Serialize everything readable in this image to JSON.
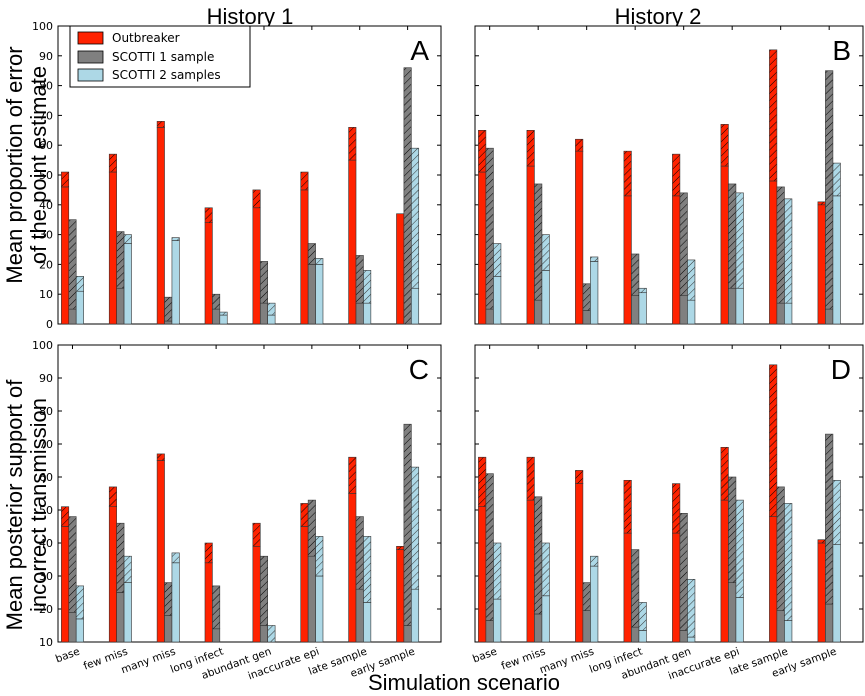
{
  "figure": {
    "column_titles": [
      "History 1",
      "History 2"
    ],
    "ylabel_top": [
      "Mean proportion of error",
      "of the point estimate"
    ],
    "ylabel_bottom": [
      "Mean posterior support of",
      "incorrect transmission"
    ],
    "xlabel": "Simulation scenario"
  },
  "legend": {
    "position": "top-left",
    "entries": [
      {
        "name": "Outbreaker",
        "color": "#ff2200"
      },
      {
        "name": "SCOTTI 1 sample",
        "color": "#808080"
      },
      {
        "name": "SCOTTI 2 samples",
        "color": "#add8e6"
      }
    ]
  },
  "chart_data": [
    {
      "panel": "A",
      "type": "bar",
      "title": "History 1",
      "ylabel": "Mean proportion of error of the point estimate",
      "xlabel": "",
      "ylim": [
        0,
        100
      ],
      "yticks": [
        0,
        10,
        20,
        30,
        40,
        50,
        60,
        70,
        80,
        90,
        100
      ],
      "categories": [
        "base",
        "few miss",
        "many miss",
        "long infect",
        "abundant gen",
        "inaccurate epi",
        "late sample",
        "early sample"
      ],
      "series": [
        {
          "name": "Outbreaker",
          "values": [
            51,
            57,
            68,
            39,
            45,
            51,
            66,
            37
          ],
          "lower": [
            46,
            51,
            66,
            34,
            39,
            45,
            55,
            37
          ]
        },
        {
          "name": "SCOTTI 1 sample",
          "values": [
            35,
            31,
            9,
            10,
            21,
            27,
            23,
            86
          ],
          "lower": [
            5,
            12,
            1,
            5,
            7,
            20,
            7,
            0
          ]
        },
        {
          "name": "SCOTTI 2 samples",
          "values": [
            16,
            30,
            29,
            4,
            7,
            22,
            18,
            59
          ],
          "lower": [
            11,
            27,
            28,
            3,
            3,
            20,
            7,
            12
          ]
        }
      ]
    },
    {
      "panel": "B",
      "type": "bar",
      "title": "History 2",
      "ylabel": "",
      "xlabel": "",
      "ylim": [
        0,
        100
      ],
      "categories": [
        "base",
        "few miss",
        "many miss",
        "long infect",
        "abundant gen",
        "inaccurate epi",
        "late sample",
        "early sample"
      ],
      "series": [
        {
          "name": "Outbreaker",
          "values": [
            65,
            65,
            62,
            58,
            57,
            67,
            92,
            41
          ],
          "lower": [
            51,
            53,
            58,
            43,
            43,
            53,
            48,
            40
          ]
        },
        {
          "name": "SCOTTI 1 sample",
          "values": [
            59,
            47,
            13.5,
            23.5,
            44,
            47,
            46,
            85
          ],
          "lower": [
            5,
            8,
            4.5,
            9.5,
            9.5,
            12,
            7,
            5
          ]
        },
        {
          "name": "SCOTTI 2 samples",
          "values": [
            27,
            30,
            22.5,
            12,
            21.5,
            44,
            42,
            54
          ],
          "lower": [
            16,
            18,
            21,
            10.5,
            8,
            12,
            7,
            43
          ]
        }
      ]
    },
    {
      "panel": "C",
      "type": "bar",
      "title": "",
      "ylabel": "Mean posterior support of incorrect transmission",
      "xlabel": "Simulation scenario",
      "ylim": [
        10,
        100
      ],
      "yticks": [
        10,
        20,
        30,
        40,
        50,
        60,
        70,
        80,
        90,
        100
      ],
      "categories": [
        "base",
        "few miss",
        "many miss",
        "long infect",
        "abundant gen",
        "inaccurate epi",
        "late sample",
        "early sample"
      ],
      "series": [
        {
          "name": "Outbreaker",
          "values": [
            51,
            57,
            67,
            40,
            46,
            52,
            66,
            39
          ],
          "lower": [
            45,
            51,
            65,
            34,
            39,
            45,
            55,
            38
          ]
        },
        {
          "name": "SCOTTI 1 sample",
          "values": [
            48,
            46,
            28,
            27,
            36,
            53,
            48,
            76
          ],
          "lower": [
            19,
            25,
            18,
            14,
            15,
            36,
            26,
            15
          ]
        },
        {
          "name": "SCOTTI 2 samples",
          "values": [
            27,
            36,
            37,
            10,
            15,
            42,
            42,
            63
          ],
          "lower": [
            17,
            28,
            34,
            7,
            7,
            30,
            22,
            26
          ]
        }
      ]
    },
    {
      "panel": "D",
      "type": "bar",
      "title": "",
      "ylabel": "",
      "xlabel": "Simulation scenario",
      "ylim": [
        10,
        100
      ],
      "categories": [
        "base",
        "few miss",
        "many miss",
        "long infect",
        "abundant gen",
        "inaccurate epi",
        "late sample",
        "early sample"
      ],
      "series": [
        {
          "name": "Outbreaker",
          "values": [
            66,
            66,
            62,
            59,
            58,
            69,
            94,
            41
          ],
          "lower": [
            51,
            53,
            58,
            43,
            43,
            53,
            48,
            40
          ]
        },
        {
          "name": "SCOTTI 1 sample",
          "values": [
            61,
            54,
            28,
            38,
            49,
            60,
            57,
            73
          ],
          "lower": [
            16.5,
            18.5,
            19.5,
            14.5,
            13.5,
            28,
            19.5,
            21.5
          ]
        },
        {
          "name": "SCOTTI 2 samples",
          "values": [
            40,
            40,
            36,
            22,
            29,
            53,
            52,
            59
          ],
          "lower": [
            23,
            24,
            33,
            13.5,
            11.5,
            23.5,
            16.5,
            39.5
          ]
        }
      ]
    }
  ]
}
